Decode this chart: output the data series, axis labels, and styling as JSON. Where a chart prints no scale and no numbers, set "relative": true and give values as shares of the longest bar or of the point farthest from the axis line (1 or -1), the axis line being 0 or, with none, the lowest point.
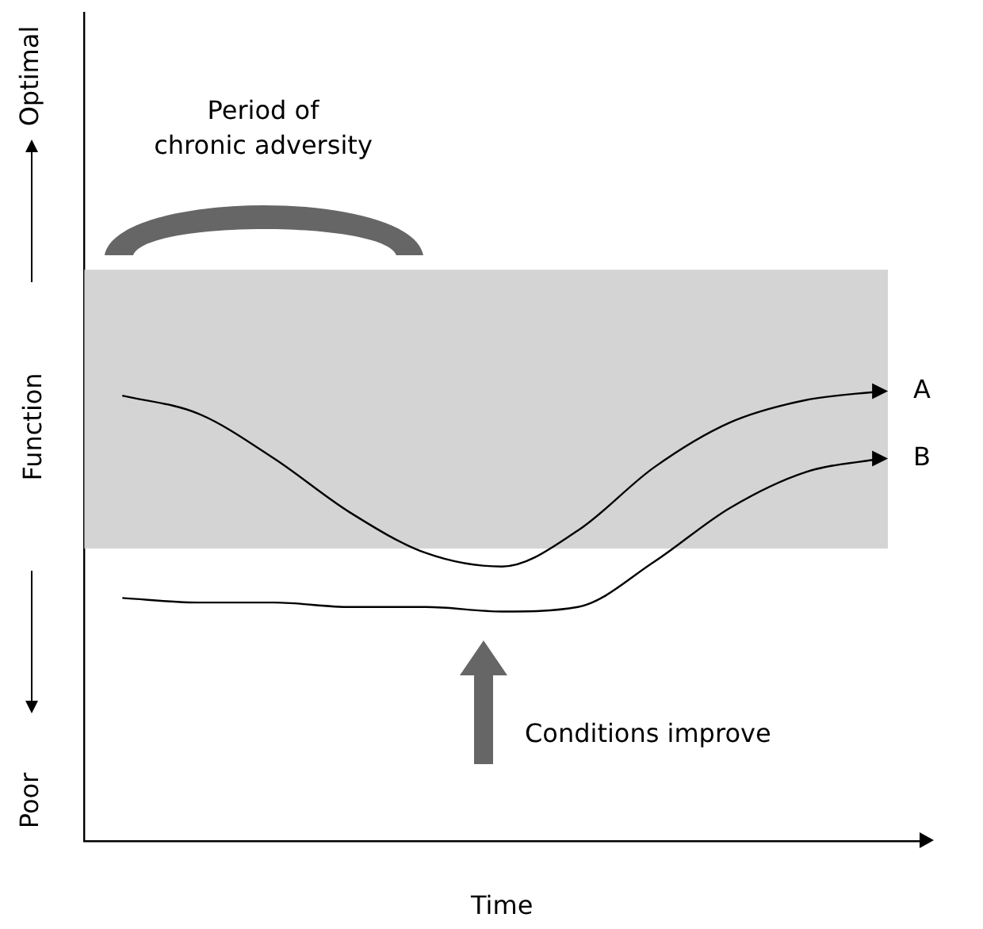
{
  "chart_data": {
    "type": "line",
    "relative": true,
    "xlabel": "Time",
    "ylabel": "Function",
    "categories": [
      null,
      null,
      null,
      null,
      null,
      null,
      null,
      null,
      null,
      null,
      null
    ],
    "series": [
      {
        "name": "A",
        "color": "#000000",
        "values": [
          0.99,
          0.95,
          0.85,
          0.73,
          0.64,
          0.61,
          0.69,
          0.83,
          0.93,
          0.98,
          1
        ]
      },
      {
        "name": "B",
        "color": "#000000",
        "values": [
          0.54,
          0.53,
          0.53,
          0.52,
          0.52,
          0.51,
          0.52,
          0.62,
          0.74,
          0.82,
          0.85
        ]
      }
    ],
    "bands": [
      {
        "axis": "y",
        "from": 0.65,
        "to": 1.27,
        "color": "#d4d4d4"
      }
    ],
    "annotations": [
      "Optimal",
      "Poor",
      "Period of chronic adversity",
      "Conditions improve"
    ],
    "marker": "none",
    "line_style": "solid",
    "grid": false,
    "legend": false
  }
}
